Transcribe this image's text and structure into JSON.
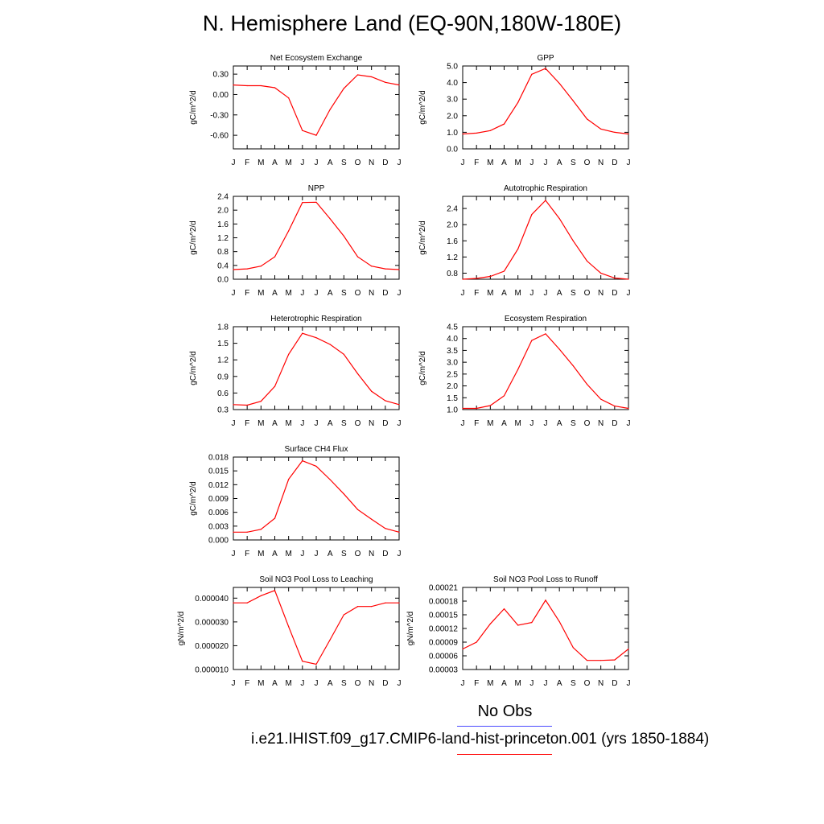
{
  "title": "N. Hemisphere Land (EQ-90N,180W-180E)",
  "legend": {
    "obs_label": "No Obs",
    "obs_color": "#4a4aff",
    "model_label": "i.e21.IHIST.f09_g17.CMIP6-land-hist-princeton.001 (yrs 1850-1884)",
    "model_color": "#ff0000"
  },
  "chart_data": [
    {
      "type": "line",
      "title": "Net Ecosystem Exchange",
      "ylabel": "gC/m^2/d",
      "ylim": [
        -0.8,
        0.42
      ],
      "yticks": [
        "0.30",
        "0.00",
        "-0.30",
        "-0.60"
      ],
      "ytick_values": [
        0.3,
        0.0,
        -0.3,
        -0.6
      ],
      "categories": [
        "J",
        "F",
        "M",
        "A",
        "M",
        "J",
        "J",
        "A",
        "S",
        "O",
        "N",
        "D",
        "J"
      ],
      "values": [
        0.14,
        0.13,
        0.13,
        0.1,
        -0.05,
        -0.53,
        -0.6,
        -0.22,
        0.09,
        0.29,
        0.26,
        0.18,
        0.14
      ]
    },
    {
      "type": "line",
      "title": "GPP",
      "ylabel": "gC/m^2/d",
      "ylim": [
        0.0,
        5.0
      ],
      "yticks": [
        "5.0",
        "4.0",
        "3.0",
        "2.0",
        "1.0",
        "0.0"
      ],
      "ytick_values": [
        5,
        4,
        3,
        2,
        1,
        0
      ],
      "categories": [
        "J",
        "F",
        "M",
        "A",
        "M",
        "J",
        "J",
        "A",
        "S",
        "O",
        "N",
        "D",
        "J"
      ],
      "values": [
        0.9,
        0.95,
        1.1,
        1.5,
        2.8,
        4.5,
        4.85,
        3.95,
        2.9,
        1.8,
        1.2,
        1.0,
        0.9
      ]
    },
    {
      "type": "line",
      "title": "NPP",
      "ylabel": "gC/m^2/d",
      "ylim": [
        0.0,
        2.4
      ],
      "yticks": [
        "2.4",
        "2.0",
        "1.6",
        "1.2",
        "0.8",
        "0.4",
        "0.0"
      ],
      "ytick_values": [
        2.4,
        2.0,
        1.6,
        1.2,
        0.8,
        0.4,
        0.0
      ],
      "categories": [
        "J",
        "F",
        "M",
        "A",
        "M",
        "J",
        "J",
        "A",
        "S",
        "O",
        "N",
        "D",
        "J"
      ],
      "values": [
        0.28,
        0.3,
        0.38,
        0.65,
        1.4,
        2.22,
        2.23,
        1.75,
        1.25,
        0.65,
        0.38,
        0.3,
        0.28
      ]
    },
    {
      "type": "line",
      "title": "Autotrophic Respiration",
      "ylabel": "gC/m^2/d",
      "ylim": [
        0.65,
        2.7
      ],
      "yticks": [
        "2.4",
        "2.0",
        "1.6",
        "1.2",
        "0.8"
      ],
      "ytick_values": [
        2.4,
        2.0,
        1.6,
        1.2,
        0.8
      ],
      "categories": [
        "J",
        "F",
        "M",
        "A",
        "M",
        "J",
        "J",
        "A",
        "S",
        "O",
        "N",
        "D",
        "J"
      ],
      "values": [
        0.65,
        0.67,
        0.72,
        0.85,
        1.4,
        2.25,
        2.6,
        2.15,
        1.6,
        1.1,
        0.8,
        0.68,
        0.65
      ]
    },
    {
      "type": "line",
      "title": "Heterotrophic Respiration",
      "ylabel": "gC/m^2/d",
      "ylim": [
        0.3,
        1.8
      ],
      "yticks": [
        "1.8",
        "1.5",
        "1.2",
        "0.9",
        "0.6",
        "0.3"
      ],
      "ytick_values": [
        1.8,
        1.5,
        1.2,
        0.9,
        0.6,
        0.3
      ],
      "categories": [
        "J",
        "F",
        "M",
        "A",
        "M",
        "J",
        "J",
        "A",
        "S",
        "O",
        "N",
        "D",
        "J"
      ],
      "values": [
        0.39,
        0.38,
        0.45,
        0.72,
        1.3,
        1.68,
        1.6,
        1.48,
        1.3,
        0.95,
        0.63,
        0.46,
        0.39
      ]
    },
    {
      "type": "line",
      "title": "Ecosystem Respiration",
      "ylabel": "gC/m^2/d",
      "ylim": [
        1.0,
        4.5
      ],
      "yticks": [
        "4.5",
        "4.0",
        "3.5",
        "3.0",
        "2.5",
        "2.0",
        "1.5",
        "1.0"
      ],
      "ytick_values": [
        4.5,
        4.0,
        3.5,
        3.0,
        2.5,
        2.0,
        1.5,
        1.0
      ],
      "categories": [
        "J",
        "F",
        "M",
        "A",
        "M",
        "J",
        "J",
        "A",
        "S",
        "O",
        "N",
        "D",
        "J"
      ],
      "values": [
        1.05,
        1.05,
        1.17,
        1.58,
        2.7,
        3.92,
        4.2,
        3.55,
        2.85,
        2.07,
        1.44,
        1.15,
        1.05
      ]
    },
    {
      "type": "line",
      "title": "Surface CH4 Flux",
      "ylabel": "gC/m^2/d",
      "ylim": [
        0.0,
        0.018
      ],
      "yticks": [
        "0.018",
        "0.015",
        "0.012",
        "0.009",
        "0.006",
        "0.003",
        "0.000"
      ],
      "ytick_values": [
        0.018,
        0.015,
        0.012,
        0.009,
        0.006,
        0.003,
        0.0
      ],
      "categories": [
        "J",
        "F",
        "M",
        "A",
        "M",
        "J",
        "J",
        "A",
        "S",
        "O",
        "N",
        "D",
        "J"
      ],
      "values": [
        0.0017,
        0.0017,
        0.0023,
        0.0047,
        0.0132,
        0.0172,
        0.016,
        0.0131,
        0.01,
        0.0066,
        0.0045,
        0.0025,
        0.0017
      ]
    },
    {
      "type": "line",
      "title": "Soil NO3 Pool Loss to Leaching",
      "ylabel": "gN/m^2/d",
      "ylim": [
        1e-05,
        4.45e-05
      ],
      "yticks": [
        "0.000040",
        "0.000030",
        "0.000020",
        "0.000010"
      ],
      "ytick_values": [
        4e-05,
        3e-05,
        2e-05,
        1e-05
      ],
      "categories": [
        "J",
        "F",
        "M",
        "A",
        "M",
        "J",
        "J",
        "A",
        "S",
        "O",
        "N",
        "D",
        "J"
      ],
      "values": [
        3.8e-05,
        3.8e-05,
        4.1e-05,
        4.32e-05,
        2.8e-05,
        1.35e-05,
        1.22e-05,
        2.25e-05,
        3.3e-05,
        3.65e-05,
        3.65e-05,
        3.8e-05,
        3.8e-05
      ]
    },
    {
      "type": "line",
      "title": "Soil NO3 Pool Loss to Runoff",
      "ylabel": "gN/m^2/d",
      "ylim": [
        3e-05,
        0.00021
      ],
      "yticks": [
        "0.00021",
        "0.00018",
        "0.00015",
        "0.00012",
        "0.00009",
        "0.00006",
        "0.00003"
      ],
      "ytick_values": [
        0.00021,
        0.00018,
        0.00015,
        0.00012,
        9e-05,
        6e-05,
        3e-05
      ],
      "categories": [
        "J",
        "F",
        "M",
        "A",
        "M",
        "J",
        "J",
        "A",
        "S",
        "O",
        "N",
        "D",
        "J"
      ],
      "values": [
        7.5e-05,
        9e-05,
        0.00013,
        0.000163,
        0.000127,
        0.000133,
        0.000182,
        0.000135,
        7.8e-05,
        5e-05,
        5e-05,
        5.1e-05,
        7.5e-05
      ]
    }
  ]
}
